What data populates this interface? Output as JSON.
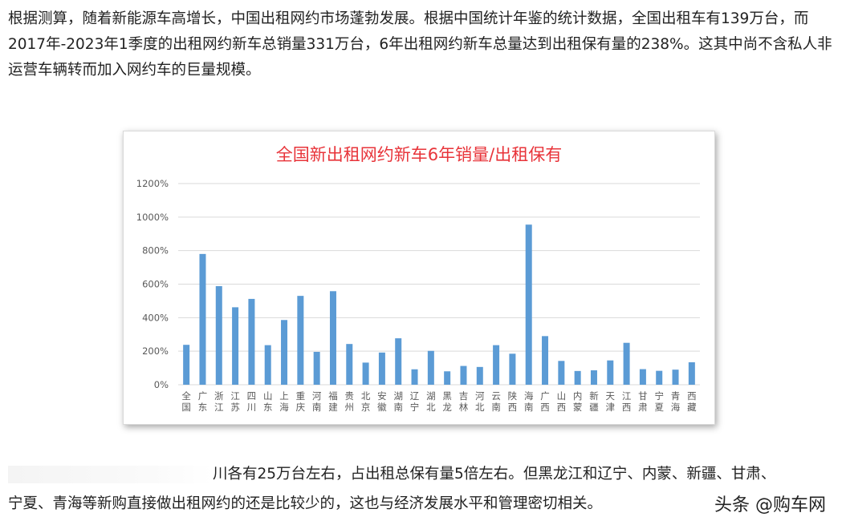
{
  "article": {
    "paragraph_top": "根据测算，随着新能源车高增长，中国出租网约市场蓬勃发展。根据中国统计年鉴的统计数据，全国出租车有139万台，而2017年-2023年1季度的出租网约新车总销量331万台，6年出租网约新车总量达到出租保有量的238%。这其中尚不含私人非运营车辆转而加入网约车的巨量规模。",
    "paragraph_bottom_line1": "川各有25万台左右，占出租总保有量5倍左右。但黑龙江和辽宁、内蒙、新疆、甘肃、",
    "paragraph_bottom_line2": "宁夏、青海等新购直接做出租网约的还是比较少的，这也与经济发展水平和管理密切相关。"
  },
  "watermark": "头条 @购车网",
  "colors": {
    "bar": "#5b9bd5",
    "title": "#e8343a",
    "grid": "#d9d9d9",
    "axis_text": "#595959"
  },
  "chart_data": {
    "type": "bar",
    "title": "全国新出租网约新车6年销量/出租保有",
    "xlabel": "",
    "ylabel": "",
    "y_unit": "%",
    "ylim": [
      0,
      1200
    ],
    "yticks": [
      0,
      200,
      400,
      600,
      800,
      1000,
      1200
    ],
    "ytick_labels": [
      "0%",
      "200%",
      "400%",
      "600%",
      "800%",
      "1000%",
      "1200%"
    ],
    "grid": true,
    "legend": "none",
    "categories": [
      "全国",
      "广东",
      "浙江",
      "江苏",
      "四川",
      "山东",
      "上海",
      "重庆",
      "河南",
      "福建",
      "贵州",
      "北京",
      "安徽",
      "湖南",
      "辽宁",
      "湖北",
      "黑龙",
      "吉林",
      "河北",
      "云南",
      "陕西",
      "海南",
      "广西",
      "山西",
      "内蒙",
      "新疆",
      "天津",
      "江西",
      "甘肃",
      "宁夏",
      "青海",
      "西藏"
    ],
    "values": [
      238,
      780,
      588,
      462,
      512,
      236,
      386,
      530,
      196,
      558,
      243,
      132,
      192,
      277,
      92,
      202,
      80,
      112,
      106,
      236,
      185,
      955,
      290,
      142,
      82,
      86,
      145,
      250,
      93,
      83,
      90,
      134
    ]
  }
}
